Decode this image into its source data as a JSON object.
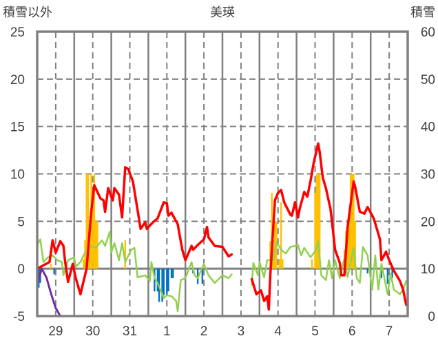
{
  "chart_data": {
    "type": "line",
    "title": "美瑛",
    "ylabel_left": "積雪以外",
    "ylabel_right": "積雪",
    "x_unit": "hours since start of day 29",
    "xlim": [
      0,
      240
    ],
    "ylim_left": [
      -5,
      25
    ],
    "ylim_right": [
      0,
      60
    ],
    "yticks_left": [
      "25",
      "20",
      "15",
      "10",
      "5",
      "0",
      "-5"
    ],
    "yticks_right": [
      "60",
      "50",
      "40",
      "30",
      "20",
      "10",
      "0"
    ],
    "xtick_labels": [
      "29",
      "30",
      "31",
      "1",
      "2",
      "3",
      "4",
      "5",
      "6",
      "7"
    ],
    "grid": true,
    "colors": {
      "temperature": "#ff0000",
      "green": "#92d050",
      "snow_depth": "#7030a0",
      "bars_pos": "#ffc000",
      "bars_neg": "#0070c0",
      "axis": "#808080"
    },
    "series": [
      {
        "name": "red",
        "axis": "left",
        "color": "#ff0000",
        "segments": [
          [
            [
              0,
              0
            ],
            [
              8,
              0.7
            ],
            [
              10,
              3.0
            ],
            [
              12,
              1.7
            ],
            [
              15,
              2.9
            ],
            [
              17,
              2.4
            ],
            [
              18,
              0.9
            ],
            [
              20,
              -1.4
            ],
            [
              23,
              0.5
            ],
            [
              25,
              -1.0
            ],
            [
              28,
              -2.7
            ],
            [
              32,
              0
            ],
            [
              35,
              6.0
            ],
            [
              37,
              8.8
            ],
            [
              41,
              7.4
            ],
            [
              43,
              7.2
            ],
            [
              44,
              6.0
            ],
            [
              46,
              8.5
            ],
            [
              49,
              7.2
            ],
            [
              50,
              8.5
            ],
            [
              53,
              7.8
            ],
            [
              55,
              5.4
            ],
            [
              57,
              10.7
            ],
            [
              59,
              10.5
            ],
            [
              62,
              9.2
            ],
            [
              67,
              4.2
            ],
            [
              70,
              4.9
            ],
            [
              71,
              4.2
            ],
            [
              75,
              4.9
            ],
            [
              78,
              5.3
            ],
            [
              82,
              7.0
            ],
            [
              84,
              6.9
            ],
            [
              85,
              5.6
            ],
            [
              87,
              5.9
            ],
            [
              91,
              4.7
            ],
            [
              94,
              2.0
            ],
            [
              96,
              0.9
            ],
            [
              100,
              2.4
            ],
            [
              101,
              2.0
            ],
            [
              104,
              2.5
            ],
            [
              108,
              3.1
            ],
            [
              110,
              4.4
            ],
            [
              111,
              3.3
            ],
            [
              115,
              2.4
            ],
            [
              120,
              2.3
            ],
            [
              124,
              1.3
            ],
            [
              126,
              1.5
            ]
          ],
          [
            [
              139,
              -1.1
            ],
            [
              142,
              -2.7
            ],
            [
              145,
              -2.3
            ],
            [
              147,
              -3.4
            ],
            [
              149,
              -2.9
            ],
            [
              150,
              -4.3
            ],
            [
              151,
              -0.7
            ],
            [
              154,
              7.2
            ],
            [
              156,
              8.0
            ],
            [
              158,
              8.3
            ],
            [
              160,
              7.0
            ],
            [
              164,
              5.7
            ],
            [
              165,
              5.6
            ],
            [
              167,
              7.0
            ],
            [
              169,
              5.4
            ],
            [
              170,
              6.3
            ],
            [
              173,
              8.1
            ],
            [
              175,
              7.6
            ],
            [
              177,
              9.2
            ],
            [
              179,
              11.1
            ],
            [
              182,
              13.2
            ],
            [
              183,
              12.3
            ],
            [
              185,
              9.6
            ],
            [
              187,
              8.5
            ],
            [
              190,
              6.3
            ],
            [
              193,
              2.0
            ],
            [
              196,
              0.6
            ],
            [
              197,
              -0.7
            ],
            [
              199,
              -0.7
            ],
            [
              201,
              4.3
            ],
            [
              205,
              9.2
            ],
            [
              206,
              8.6
            ],
            [
              209,
              6.0
            ],
            [
              212,
              5.8
            ],
            [
              214,
              6.5
            ],
            [
              218,
              5.3
            ],
            [
              220,
              4.2
            ],
            [
              222,
              3.1
            ],
            [
              223,
              0.9
            ],
            [
              226,
              1.8
            ],
            [
              228,
              0.9
            ],
            [
              231,
              -0.2
            ],
            [
              235,
              -1.3
            ],
            [
              237,
              -2.2
            ],
            [
              239,
              -3.8
            ]
          ]
        ]
      },
      {
        "name": "green",
        "axis": "left",
        "color": "#92d050",
        "segments": [
          [
            [
              0,
              2.5
            ],
            [
              2,
              3.1
            ],
            [
              4,
              0.7
            ],
            [
              7,
              1.2
            ],
            [
              10,
              1.4
            ],
            [
              13,
              0.9
            ],
            [
              16,
              0.7
            ],
            [
              17,
              -0.7
            ],
            [
              20,
              0.9
            ],
            [
              24,
              1.2
            ],
            [
              25,
              0.2
            ],
            [
              28,
              0.7
            ],
            [
              31,
              1.7
            ],
            [
              35,
              2.4
            ],
            [
              38,
              2.2
            ],
            [
              42,
              3.0
            ],
            [
              44,
              2.4
            ],
            [
              47,
              3.9
            ],
            [
              48,
              1.7
            ],
            [
              50,
              2.7
            ],
            [
              53,
              0.9
            ],
            [
              55,
              2.7
            ],
            [
              57,
              0.7
            ],
            [
              61,
              2.0
            ],
            [
              63,
              2.2
            ],
            [
              65,
              -0.9
            ],
            [
              70,
              -0.7
            ],
            [
              73,
              -1.3
            ],
            [
              74,
              0.7
            ],
            [
              76,
              -1.0
            ],
            [
              78,
              -1.5
            ],
            [
              82,
              -3.1
            ],
            [
              84,
              -2.8
            ],
            [
              87,
              -2.9
            ],
            [
              90,
              -3.4
            ],
            [
              91,
              -4.5
            ],
            [
              93,
              -1.2
            ],
            [
              96,
              -1.0
            ],
            [
              100,
              0.7
            ],
            [
              102,
              -0.7
            ],
            [
              104,
              -1.0
            ],
            [
              108,
              0.5
            ],
            [
              111,
              -0.7
            ],
            [
              115,
              -1.5
            ],
            [
              120,
              -0.7
            ],
            [
              124,
              -1.0
            ],
            [
              126,
              -0.6
            ]
          ],
          [
            [
              139,
              -1.7
            ],
            [
              140,
              0.6
            ],
            [
              143,
              -0.7
            ],
            [
              144,
              0.7
            ],
            [
              147,
              -0.9
            ],
            [
              149,
              0.9
            ],
            [
              153,
              0.9
            ],
            [
              155,
              2.8
            ],
            [
              158,
              2.0
            ],
            [
              161,
              1.6
            ],
            [
              164,
              2.3
            ],
            [
              167,
              2.4
            ],
            [
              169,
              2.5
            ],
            [
              171,
              1.4
            ],
            [
              173,
              2.2
            ],
            [
              177,
              1.2
            ],
            [
              180,
              1.8
            ],
            [
              182,
              2.9
            ],
            [
              184,
              -0.7
            ],
            [
              187,
              -1.2
            ],
            [
              189,
              0.9
            ],
            [
              191,
              -1.0
            ],
            [
              193,
              0.9
            ],
            [
              196,
              -1.0
            ],
            [
              199,
              1.1
            ],
            [
              201,
              -0.9
            ],
            [
              205,
              2.2
            ],
            [
              207,
              -1.0
            ],
            [
              209,
              -1.5
            ],
            [
              211,
              2.3
            ],
            [
              214,
              1.4
            ],
            [
              217,
              -2.2
            ],
            [
              219,
              1.4
            ],
            [
              221,
              -2.2
            ],
            [
              223,
              0.5
            ],
            [
              227,
              -2.7
            ],
            [
              229,
              -0.5
            ],
            [
              231,
              -2.2
            ],
            [
              235,
              -2.7
            ],
            [
              237,
              -2.2
            ],
            [
              239,
              -1.3
            ]
          ]
        ]
      },
      {
        "name": "snow_depth",
        "axis": "right",
        "color": "#7030a0",
        "segments": [
          [
            [
              0,
              6.8
            ],
            [
              3,
              10
            ],
            [
              6,
              8.1
            ],
            [
              9,
              4.7
            ],
            [
              12,
              1.7
            ],
            [
              15,
              0
            ],
            [
              126,
              0
            ]
          ],
          [
            [
              138,
              0
            ],
            [
              239,
              0
            ]
          ]
        ]
      }
    ],
    "bars": {
      "axis": "left",
      "values": [
        [
          1,
          -2.0
        ],
        [
          2,
          -1.5
        ],
        [
          9,
          0.5
        ],
        [
          11,
          -0.6
        ],
        [
          30,
          1.0
        ],
        [
          31,
          3.0
        ],
        [
          32,
          10
        ],
        [
          33,
          10
        ],
        [
          34,
          5
        ],
        [
          35,
          10
        ],
        [
          36,
          8
        ],
        [
          37,
          10
        ],
        [
          38,
          5
        ],
        [
          39,
          5
        ],
        [
          57,
          3.0
        ],
        [
          76,
          -2.4
        ],
        [
          78,
          -2.4
        ],
        [
          79,
          -3.5
        ],
        [
          81,
          -3.5
        ],
        [
          82,
          -2.8
        ],
        [
          84,
          -2.8
        ],
        [
          85,
          -2.4
        ],
        [
          87,
          -1.0
        ],
        [
          88,
          -1.0
        ],
        [
          101,
          -0.5
        ],
        [
          104,
          -1.6
        ],
        [
          107,
          -1.6
        ],
        [
          151,
          2.9
        ],
        [
          152,
          8.0
        ],
        [
          153,
          3.0
        ],
        [
          154,
          5
        ],
        [
          155,
          5
        ],
        [
          157,
          1
        ],
        [
          158,
          7
        ],
        [
          159,
          1
        ],
        [
          178,
          1
        ],
        [
          180,
          8
        ],
        [
          181,
          10
        ],
        [
          182,
          10
        ],
        [
          183,
          10
        ],
        [
          199,
          2
        ],
        [
          200,
          4
        ],
        [
          201,
          5
        ],
        [
          202,
          5
        ],
        [
          203,
          10
        ],
        [
          204,
          10
        ],
        [
          205,
          10
        ],
        [
          206,
          5
        ],
        [
          214,
          -0.5
        ],
        [
          223,
          -1.0
        ],
        [
          227,
          -1.6
        ],
        [
          230,
          -1.0
        ]
      ]
    }
  }
}
